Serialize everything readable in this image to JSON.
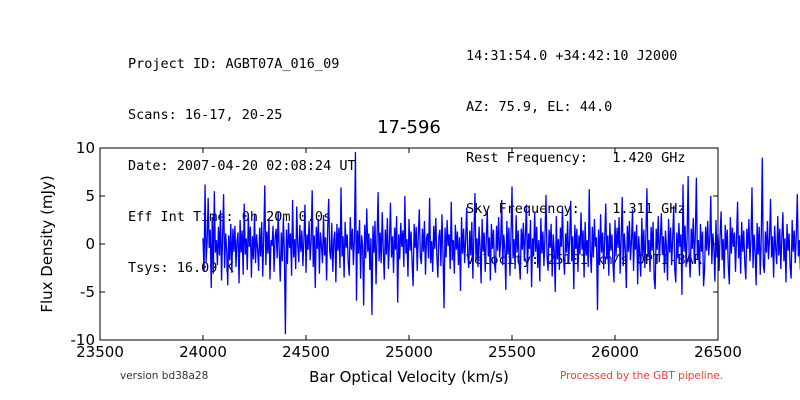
{
  "header": {
    "left": [
      "Project ID: AGBT07A_016_09",
      "Scans: 16-17, 20-25",
      "Date: 2007-04-20 02:08:24 UT",
      "Eff Int Time: 0h 20m 0.0s",
      "Tsys: 16.09 K"
    ],
    "right": [
      "14:31:54.0 +34:42:10 J2000",
      "AZ: 75.9, EL: 44.0",
      "Rest Frequency:   1.420 GHz",
      "Sky Frequency:    1.311 GHz",
      "Velocity: 25101 km/s OPTI-BAR"
    ]
  },
  "footer": {
    "version": "version bd38a28",
    "pipeline": "Processed by the GBT pipeline."
  },
  "chart_data": {
    "type": "line",
    "title": "17-596",
    "xlabel": "Bar Optical Velocity (km/s)",
    "ylabel": "Flux Density (mJy)",
    "xlim": [
      23500,
      26500
    ],
    "ylim": [
      -10,
      10
    ],
    "xticks": [
      23500,
      24000,
      24500,
      25000,
      25500,
      26000,
      26500
    ],
    "yticks": [
      -10,
      -5,
      0,
      5,
      10
    ],
    "grid": false,
    "line_color": "#0000ff",
    "series": [
      {
        "x_start": 24000,
        "x_step": 5,
        "values": [
          0.6,
          -2.9,
          6.2,
          -1.9,
          0.2,
          4.8,
          -0.4,
          1.5,
          -4.6,
          2.8,
          -3.1,
          5.5,
          -0.9,
          0.4,
          -2.2,
          1.8,
          -1.2,
          3.5,
          -3.8,
          0.7,
          5.2,
          -2.5,
          1.1,
          -0.6,
          -4.3,
          0.9,
          -1.7,
          2.1,
          -3.0,
          1.6,
          -0.8,
          1.9,
          -2.4,
          0.3,
          1.2,
          -4.1,
          2.5,
          -0.9,
          1.4,
          -3.2,
          4.2,
          -1.1,
          0.6,
          -2.7,
          2.9,
          -0.3,
          1.8,
          -3.5,
          0.8,
          -1.6,
          3.1,
          -2.0,
          1.0,
          -0.5,
          -2.8,
          1.7,
          -1.3,
          2.3,
          -3.4,
          0.9,
          6.1,
          -2.2,
          1.3,
          -1.0,
          2.6,
          -3.7,
          0.4,
          -0.2,
          1.9,
          -2.9,
          0.7,
          1.6,
          -1.5,
          3.4,
          -0.7,
          -3.9,
          1.2,
          -1.8,
          2.7,
          -0.9,
          -9.4,
          1.5,
          -2.1,
          2.2,
          -0.4,
          1.1,
          -3.3,
          4.6,
          -1.4,
          0.5,
          -2.6,
          3.9,
          -0.1,
          -1.9,
          2.0,
          -0.8,
          1.4,
          -2.3,
          0.6,
          4.1,
          -3.0,
          1.0,
          -0.6,
          2.4,
          -1.7,
          0.3,
          5.6,
          -2.4,
          0.9,
          -4.6,
          1.8,
          -0.5,
          2.6,
          -3.1,
          1.2,
          -0.2,
          -2.0,
          3.0,
          -1.2,
          0.7,
          -3.8,
          1.5,
          4.7,
          -0.8,
          -1.6,
          2.2,
          -2.9,
          0.4,
          1.3,
          -4.0,
          2.1,
          -0.7,
          1.7,
          -2.5,
          5.9,
          -1.3,
          0.8,
          -3.5,
          2.3,
          -0.4,
          1.0,
          -1.9,
          -3.3,
          2.8,
          -0.6,
          1.6,
          -2.2,
          0.5,
          9.6,
          -5.9,
          1.4,
          -1.0,
          2.5,
          -3.6,
          0.9,
          -0.3,
          -6.4,
          2.0,
          -1.5,
          3.7,
          -0.8,
          1.1,
          -2.7,
          0.6,
          -7.4,
          1.9,
          -0.9,
          2.4,
          -4.2,
          0.7,
          5.4,
          -1.8,
          1.2,
          -2.0,
          3.3,
          -0.5,
          -3.7,
          1.5,
          -1.1,
          2.7,
          -2.6,
          0.2,
          4.3,
          -1.4,
          0.8,
          -3.0,
          1.7,
          -0.6,
          2.9,
          -6.1,
          1.0,
          -1.6,
          2.2,
          -0.3,
          1.4,
          -2.4,
          5.0,
          -1.0,
          0.5,
          -3.4,
          2.6,
          -0.7,
          1.3,
          -1.9,
          -4.4,
          2.1,
          -0.4,
          1.8,
          -2.8,
          0.9,
          3.6,
          -1.3,
          -2.1,
          1.6,
          -0.8,
          2.4,
          -3.2,
          0.6,
          1.1,
          -1.5,
          4.8,
          -2.0,
          0.3,
          -2.9,
          1.9,
          -0.5,
          2.7,
          -1.1,
          -3.5,
          0.8,
          1.5,
          -2.3,
          3.1,
          -0.9,
          -6.7,
          1.7,
          -1.4,
          2.5,
          -0.2,
          1.0,
          -2.6,
          4.4,
          -1.7,
          0.4,
          -3.1,
          2.0,
          -0.6,
          1.3,
          -2.2,
          0.7,
          -4.9,
          2.8,
          -1.0,
          1.6,
          -2.0,
          0.5,
          3.8,
          -0.9,
          -2.5,
          1.4,
          -1.2,
          2.3,
          -3.6,
          0.9,
          5.3,
          -1.6,
          0.6,
          -2.4,
          1.8,
          -0.3,
          -4.1,
          2.6,
          -0.8,
          1.2,
          -2.9,
          0.4,
          3.5,
          -1.3,
          0.7,
          -3.8,
          2.1,
          -0.5,
          1.5,
          -2.1,
          -3.0,
          1.9,
          -0.7,
          2.8,
          -1.4,
          0.3,
          4.6,
          -2.2,
          1.0,
          -0.4,
          -4.8,
          2.4,
          -1.1,
          1.7,
          -3.3,
          0.8,
          6.0,
          -1.5,
          0.5,
          -2.6,
          3.0,
          -0.9,
          1.4,
          -2.0,
          -3.7,
          1.6,
          -0.6,
          2.2,
          -1.8,
          0.9,
          4.1,
          -3.1,
          1.1,
          -0.5,
          2.5,
          -4.5,
          0.6,
          -1.3,
          3.4,
          -0.8,
          1.8,
          -2.5,
          0.4,
          -3.9,
          2.7,
          -1.0,
          1.3,
          -2.3,
          0.7,
          5.1,
          -1.2,
          -2.8,
          1.5,
          -0.4,
          2.1,
          -3.4,
          1.0,
          -0.7,
          -5.0,
          2.9,
          -1.6,
          0.5,
          -2.7,
          1.7,
          -0.3,
          3.9,
          -1.4,
          -3.2,
          1.1,
          -0.9,
          2.4,
          -2.1,
          0.6,
          4.5,
          -1.8,
          0.8,
          -4.7,
          2.0,
          -0.5,
          1.6,
          -2.9,
          0.9,
          -1.1,
          3.3,
          -0.6,
          1.4,
          -3.5,
          2.3,
          -1.2,
          0.4,
          -2.4,
          5.7,
          -0.8,
          -3.0,
          1.8,
          -1.4,
          2.6,
          -0.3,
          0.7,
          -6.9,
          1.5,
          -2.2,
          3.1,
          -0.9,
          1.2,
          -2.6,
          0.5,
          4.2,
          -1.6,
          0.9,
          -3.3,
          2.2,
          -0.7,
          1.0,
          -2.0,
          -4.0,
          2.5,
          -1.3,
          1.7,
          -0.4,
          2.8,
          -3.1,
          0.6,
          4.9,
          -2.3,
          1.1,
          -0.5,
          -4.6,
          1.9,
          -0.8,
          2.4,
          -1.7,
          0.3,
          3.6,
          -2.8,
          1.3,
          -0.6,
          2.0,
          -4.2,
          0.8,
          -1.0,
          -3.4,
          2.7,
          -1.2,
          1.5,
          -2.5,
          0.9,
          5.8,
          -1.4,
          0.4,
          -2.9,
          1.8,
          -0.7,
          2.3,
          -3.6,
          -4.7,
          1.6,
          -0.6,
          2.9,
          -1.9,
          0.5,
          3.2,
          -1.1,
          0.8,
          -3.0,
          1.4,
          -0.4,
          -3.8,
          2.6,
          -0.9,
          1.7,
          -2.2,
          0.6,
          4.0,
          -2.7,
          -4.0,
          1.2,
          -1.5,
          2.2,
          -0.3,
          1.0,
          -5.3,
          6.2,
          -0.8,
          1.9,
          -2.4,
          0.7,
          7.1,
          -1.3,
          -3.5,
          1.6,
          -0.5,
          2.7,
          -2.0,
          0.9,
          6.9,
          -1.6,
          0.4,
          -3.3,
          2.1,
          -0.8,
          1.3,
          -4.4,
          -2.6,
          1.8,
          -0.7,
          2.4,
          -1.2,
          0.6,
          5.0,
          -2.1,
          1.1,
          -0.4,
          -3.9,
          2.5,
          -1.4,
          1.0,
          -2.8,
          0.8,
          3.4,
          -1.7,
          0.5,
          -3.6,
          2.0,
          -0.6,
          1.5,
          -2.3,
          -4.2,
          2.8,
          -1.0,
          1.7,
          -0.3,
          1.2,
          -2.9,
          0.7,
          4.4,
          -1.5,
          0.9,
          -3.1,
          2.3,
          -0.8,
          1.4,
          -2.0,
          -3.7,
          1.6,
          -0.5,
          2.6,
          -1.8,
          0.4,
          5.9,
          -2.5,
          1.0,
          -0.7,
          -4.3,
          2.2,
          -1.1,
          1.8,
          -3.2,
          0.6,
          9.0,
          -2.2,
          -3.0,
          1.3,
          -0.9,
          2.4,
          -1.6,
          0.5,
          4.7,
          -1.4,
          0.8,
          -3.5,
          1.9,
          -0.4,
          -2.1,
          2.9,
          -1.2,
          1.6,
          -2.6,
          0.7,
          3.3,
          -1.8,
          0.6,
          -4.0,
          2.1,
          -0.7,
          1.1,
          -2.4,
          -3.6,
          2.5,
          -0.8,
          1.4,
          -2.0,
          0.9,
          5.2,
          -1.3,
          0.4,
          -2.7,
          3.0,
          -0.6,
          1.7,
          -3.3,
          -4.1,
          1.5,
          -0.5,
          2.3,
          -1.9,
          0.8,
          3.9,
          -2.4,
          1.2,
          -0.3,
          -3.8,
          2.0,
          -1.0,
          1.8,
          -2.8,
          0.6,
          4.6,
          -1.6,
          0.9,
          -3.0,
          2.6,
          -0.7,
          1.3,
          -2.1,
          -4.6,
          1.7,
          -0.6,
          2.2,
          -1.4,
          0.5,
          3.7,
          -2.9,
          1.1,
          -0.4,
          2.4,
          -3.4,
          0.8,
          -1.2,
          -2.5,
          1.9,
          -0.9,
          2.7,
          -1.7,
          0.6,
          5.4,
          -1.1,
          0.3,
          -3.2,
          2.0,
          -0.8,
          1.5,
          -2.3,
          -5.0,
          2.3,
          -1.3,
          1.0,
          -2.6,
          0.7,
          4.3,
          -1.5,
          0.6,
          -3.7,
          1.8,
          -0.5,
          2.5,
          -2.0,
          -3.3,
          1.4,
          -0.7,
          2.9,
          -1.2,
          0.4,
          3.6,
          -2.2,
          1.0,
          -0.6,
          -4.4,
          2.1,
          -1.1,
          1.6,
          -2.9,
          0.9,
          5.6,
          -1.8,
          -3.0,
          1.2,
          -0.4,
          2.4,
          -1.6,
          0.8,
          4.0,
          -2.7,
          0.5,
          -3.4,
          1.9,
          -0.9,
          1.3,
          -2.2,
          -4.3,
          2.6,
          -1.0,
          1.7,
          -0.3,
          1.1,
          -2.5,
          0.6,
          4.8,
          -1.4,
          0.8,
          -2.9,
          2.2,
          -0.7,
          1.5,
          -3.8,
          -2.8,
          1.8,
          -0.6,
          2.3,
          -1.9,
          0.5,
          3.5,
          -1.2,
          -8.0,
          1.6,
          -0.8,
          2.0,
          -3.1,
          0.9,
          6.3,
          -1.7,
          0.4,
          -2.6,
          1.4,
          -0.5,
          2.7,
          -2.4,
          -3.5,
          1.3,
          -0.7,
          2.5,
          -1.5,
          0.7,
          4.2,
          -2.0,
          0.6,
          -4.5,
          1.9,
          -0.4,
          -8.8,
          2.8,
          -1.1,
          1.5,
          -2.7,
          0.8,
          3.8,
          -1.6,
          1.0,
          -3.3,
          2.1,
          -0.6,
          1.2,
          -2.1,
          -4.0,
          2.4,
          -0.9,
          1.8,
          -0.3,
          1.3,
          -2.8,
          0.5,
          5.2,
          -1.3,
          0.7,
          -3.0,
          2.6,
          -0.8,
          1.4,
          -2.5,
          -5.2,
          1.7,
          -0.5,
          2.2,
          -1.8,
          0.6,
          3.4,
          -2.3,
          1.1,
          -0.4,
          -3.6,
          2.0,
          -1.2,
          1.6,
          -2.9,
          0.9,
          4.9,
          -1.5,
          -2.6,
          1.1,
          -0.7,
          2.5,
          -1.4,
          0.4,
          3.7,
          -2.1,
          0.8,
          -3.9,
          1.8,
          -0.6,
          1.3,
          -2.4,
          -4.7,
          2.7,
          -1.0,
          1.5,
          -0.3,
          1.0,
          -2.2,
          0.7,
          4.1,
          -1.7,
          0.5,
          -3.2,
          2.3,
          -0.9,
          1.6,
          -2.0,
          -3.4,
          1.4,
          -0.4,
          2.8,
          -1.6,
          0.6,
          3.2,
          -1.3,
          -5.0,
          1.2,
          -0.8,
          2.1,
          -2.7,
          0.9,
          2.6,
          -1.5,
          0.4,
          -2.4,
          1.7,
          -0.6,
          2.2,
          -1.1,
          -0.9,
          0.8,
          -1.8,
          0.3,
          1.4,
          -0.5,
          0.2
        ]
      }
    ]
  }
}
